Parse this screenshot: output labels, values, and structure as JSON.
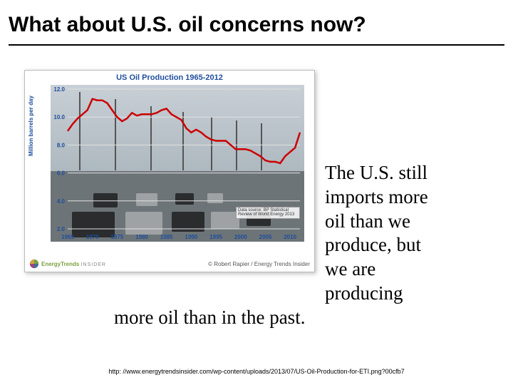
{
  "title": "What about U.S. oil concerns now?",
  "body_line1": "The U.S. still",
  "body_line2": "imports more",
  "body_line3": "oil than we",
  "body_line4": "produce, but",
  "body_line5": "we are",
  "body_line6": "producing",
  "body_line7": "more oil than in the past.",
  "source_url": "http: //www.energytrendsinsider.com/wp-content/uploads/2013/07/US-Oil-Production-for-ETI.png?00cfb7",
  "chart": {
    "title": "US Oil Production 1965-2012",
    "ylabel": "Million barrels per day",
    "logo_text": "EnergyTrends",
    "logo_sub": "INSIDER",
    "credit": "© Robert Rapier / Energy Trends Insider",
    "attr_line1": "Data source: BP Statistical",
    "attr_line2": "Review of World Energy 2013",
    "x_ticks": [
      "1965",
      "1970",
      "1975",
      "1980",
      "1985",
      "1990",
      "1995",
      "2000",
      "2005",
      "2010"
    ],
    "y_ticks": [
      "2.0",
      "4.0",
      "6.0",
      "8.0",
      "10.0",
      "12.0"
    ],
    "ylim_min": 2.0,
    "ylim_max": 12.0,
    "xlim_min": 1965,
    "xlim_max": 2012,
    "line_color": "#cc0000",
    "line_width": 2.5,
    "background_color": "#ffffff",
    "grid_color": "#e0e0e0",
    "title_color": "#1f4e9c",
    "axis_text_color": "#1f4e9c",
    "series": [
      {
        "x": 1965,
        "y": 9.0
      },
      {
        "x": 1966,
        "y": 9.5
      },
      {
        "x": 1967,
        "y": 9.9
      },
      {
        "x": 1968,
        "y": 10.2
      },
      {
        "x": 1969,
        "y": 10.5
      },
      {
        "x": 1970,
        "y": 11.3
      },
      {
        "x": 1971,
        "y": 11.2
      },
      {
        "x": 1972,
        "y": 11.2
      },
      {
        "x": 1973,
        "y": 11.0
      },
      {
        "x": 1974,
        "y": 10.5
      },
      {
        "x": 1975,
        "y": 10.0
      },
      {
        "x": 1976,
        "y": 9.7
      },
      {
        "x": 1977,
        "y": 9.9
      },
      {
        "x": 1978,
        "y": 10.3
      },
      {
        "x": 1979,
        "y": 10.1
      },
      {
        "x": 1980,
        "y": 10.2
      },
      {
        "x": 1981,
        "y": 10.2
      },
      {
        "x": 1982,
        "y": 10.2
      },
      {
        "x": 1983,
        "y": 10.3
      },
      {
        "x": 1984,
        "y": 10.5
      },
      {
        "x": 1985,
        "y": 10.6
      },
      {
        "x": 1986,
        "y": 10.2
      },
      {
        "x": 1987,
        "y": 10.0
      },
      {
        "x": 1988,
        "y": 9.8
      },
      {
        "x": 1989,
        "y": 9.2
      },
      {
        "x": 1990,
        "y": 8.9
      },
      {
        "x": 1991,
        "y": 9.1
      },
      {
        "x": 1992,
        "y": 8.9
      },
      {
        "x": 1993,
        "y": 8.6
      },
      {
        "x": 1994,
        "y": 8.4
      },
      {
        "x": 1995,
        "y": 8.3
      },
      {
        "x": 1996,
        "y": 8.3
      },
      {
        "x": 1997,
        "y": 8.3
      },
      {
        "x": 1998,
        "y": 8.0
      },
      {
        "x": 1999,
        "y": 7.7
      },
      {
        "x": 2000,
        "y": 7.7
      },
      {
        "x": 2001,
        "y": 7.7
      },
      {
        "x": 2002,
        "y": 7.6
      },
      {
        "x": 2003,
        "y": 7.4
      },
      {
        "x": 2004,
        "y": 7.2
      },
      {
        "x": 2005,
        "y": 6.9
      },
      {
        "x": 2006,
        "y": 6.8
      },
      {
        "x": 2007,
        "y": 6.8
      },
      {
        "x": 2008,
        "y": 6.7
      },
      {
        "x": 2009,
        "y": 7.2
      },
      {
        "x": 2010,
        "y": 7.5
      },
      {
        "x": 2011,
        "y": 7.8
      },
      {
        "x": 2012,
        "y": 8.9
      }
    ]
  }
}
